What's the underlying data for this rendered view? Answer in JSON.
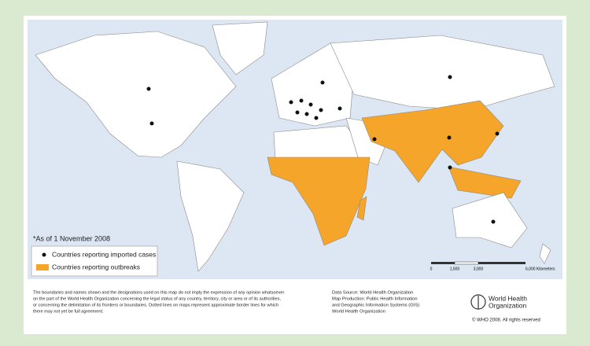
{
  "map": {
    "note": "*As of 1 November 2008",
    "legend": [
      "Countries reporting imported cases",
      "Countries reporting outbreaks"
    ],
    "scale": [
      "0",
      "1,500",
      "3,000",
      "6,000 Kilometers"
    ]
  },
  "footer": {
    "disclaimer": [
      "The boundaries and names shown and the designations used on this map do not imply the expression of any opinion whatsoever",
      "on the part of the World Health Organization concerning the legal status of any country, territory, city or area or of its authorities,",
      "or concerning the delimitation of its frontiers or boundaries.  Dotted lines on maps represent approximate border lines for which",
      "there may not yet be full agreement."
    ],
    "source": [
      "Data Source: World Health Organization",
      "Map Production: Public Health Information",
      "and Geographic Information Systems (GIS)",
      "World Health Organization"
    ],
    "logo": [
      "World Health",
      "Organization"
    ],
    "copyright": "© WHO 2008. All rights reserved"
  }
}
